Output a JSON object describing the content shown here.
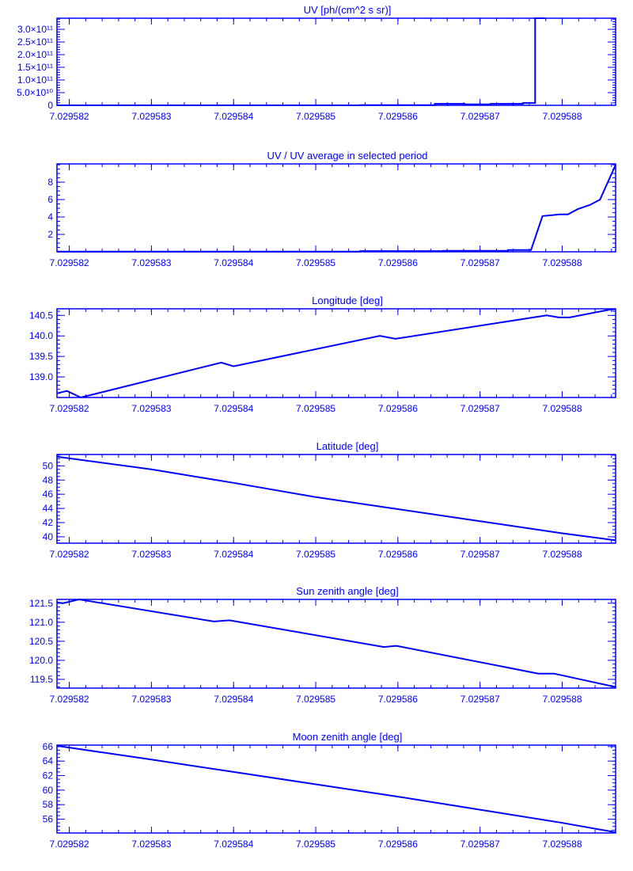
{
  "color": "#0000ff",
  "chart_data": [
    {
      "type": "line",
      "title": "UV [ph/(cm^2 s sr)]",
      "xlim": [
        7.02958185,
        7.02958865
      ],
      "ylim": [
        0,
        344000000000.0
      ],
      "xticks": [
        7.029582,
        7.029583,
        7.029584,
        7.029585,
        7.029586,
        7.029587,
        7.029588
      ],
      "xtick_labels": [
        "7.029582",
        "7.029583",
        "7.029584",
        "7.029585",
        "7.029586",
        "7.029587",
        "7.029588"
      ],
      "yticks": [
        0,
        50000000000.0,
        100000000000.0,
        150000000000.0,
        200000000000.0,
        250000000000.0,
        300000000000.0
      ],
      "ytick_labels": [
        "0",
        "5.0×10¹⁰",
        "1.0×10¹¹",
        "1.5×10¹¹",
        "2.0×10¹¹",
        "2.5×10¹¹",
        "3.0×10¹¹"
      ],
      "yminor": 10000000000.0,
      "x": [
        7.02958185,
        7.02958554,
        7.02958554,
        7.02958645,
        7.02958645,
        7.02958681,
        7.02958681,
        7.02958713,
        7.02958713,
        7.02958752,
        7.02958752,
        7.02958767,
        7.02958767,
        7.02958779
      ],
      "y": [
        0,
        0,
        1000000000.0,
        1000000000.0,
        6000000000.0,
        6000000000.0,
        4000000000.0,
        4000000000.0,
        6000000000.0,
        6000000000.0,
        9000000000.0,
        9000000000.0,
        344000000000.0,
        344000000000.0
      ]
    },
    {
      "type": "line",
      "title": "UV / UV average in selected period",
      "xlim": [
        7.02958185,
        7.02958865
      ],
      "ylim": [
        0,
        10.1
      ],
      "xticks": [
        7.029582,
        7.029583,
        7.029584,
        7.029585,
        7.029586,
        7.029587,
        7.029588
      ],
      "xtick_labels": [
        "7.029582",
        "7.029583",
        "7.029584",
        "7.029585",
        "7.029586",
        "7.029587",
        "7.029588"
      ],
      "yticks": [
        2,
        4,
        6,
        8
      ],
      "ytick_labels": [
        "2",
        "4",
        "6",
        "8"
      ],
      "yminor": 0.5,
      "x": [
        7.02958185,
        7.02958554,
        7.02958554,
        7.02958655,
        7.02958655,
        7.02958734,
        7.02958734,
        7.02958762,
        7.02958776,
        7.02958797,
        7.02958807,
        7.02958819,
        7.02958834,
        7.02958846,
        7.02958865
      ],
      "y": [
        0.03,
        0.03,
        0.08,
        0.08,
        0.12,
        0.12,
        0.2,
        0.2,
        4.1,
        4.3,
        4.3,
        4.9,
        5.4,
        6.0,
        10.0
      ]
    },
    {
      "type": "line",
      "title": "Longitude [deg]",
      "xlim": [
        7.02958185,
        7.02958865
      ],
      "ylim": [
        138.5,
        140.66
      ],
      "xticks": [
        7.029582,
        7.029583,
        7.029584,
        7.029585,
        7.029586,
        7.029587,
        7.029588
      ],
      "xtick_labels": [
        "7.029582",
        "7.029583",
        "7.029584",
        "7.029585",
        "7.029586",
        "7.029587",
        "7.029588"
      ],
      "yticks": [
        139.0,
        139.5,
        140.0,
        140.5
      ],
      "ytick_labels": [
        "139.0",
        "139.5",
        "140.0",
        "140.5"
      ],
      "yminor": 0.1,
      "x": [
        7.02958185,
        7.02958197,
        7.02958214,
        7.02958385,
        7.029584,
        7.02958578,
        7.02958597,
        7.02958781,
        7.02958796,
        7.02958809,
        7.02958858,
        7.02958865
      ],
      "y": [
        138.6,
        138.66,
        138.5,
        139.35,
        139.26,
        140.0,
        139.93,
        140.5,
        140.45,
        140.45,
        140.64,
        140.65
      ]
    },
    {
      "type": "line",
      "title": "Latitude [deg]",
      "xlim": [
        7.02958185,
        7.02958865
      ],
      "ylim": [
        39.1,
        51.6
      ],
      "xticks": [
        7.029582,
        7.029583,
        7.029584,
        7.029585,
        7.029586,
        7.029587,
        7.029588
      ],
      "xtick_labels": [
        "7.029582",
        "7.029583",
        "7.029584",
        "7.029585",
        "7.029586",
        "7.029587",
        "7.029588"
      ],
      "yticks": [
        40,
        42,
        44,
        46,
        48,
        50
      ],
      "ytick_labels": [
        "40",
        "42",
        "44",
        "46",
        "48",
        "50"
      ],
      "yminor": 0.5,
      "x": [
        7.02958185,
        7.029583,
        7.029584,
        7.029585,
        7.029586,
        7.029587,
        7.029588,
        7.02958865
      ],
      "y": [
        51.3,
        49.5,
        47.6,
        45.6,
        43.9,
        42.2,
        40.5,
        39.5
      ]
    },
    {
      "type": "line",
      "title": "Sun zenith angle [deg]",
      "xlim": [
        7.02958185,
        7.02958865
      ],
      "ylim": [
        119.27,
        121.6
      ],
      "xticks": [
        7.029582,
        7.029583,
        7.029584,
        7.029585,
        7.029586,
        7.029587,
        7.029588
      ],
      "xtick_labels": [
        "7.029582",
        "7.029583",
        "7.029584",
        "7.029585",
        "7.029586",
        "7.029587",
        "7.029588"
      ],
      "yticks": [
        119.5,
        120.0,
        120.5,
        121.0,
        121.5
      ],
      "ytick_labels": [
        "119.5",
        "120.0",
        "120.5",
        "121.0",
        "121.5"
      ],
      "yminor": 0.1,
      "x": [
        7.02958185,
        7.02958192,
        7.02958212,
        7.02958376,
        7.02958395,
        7.02958583,
        7.02958598,
        7.02958771,
        7.0295879,
        7.02958865
      ],
      "y": [
        121.52,
        121.5,
        121.6,
        121.02,
        121.05,
        120.35,
        120.38,
        119.65,
        119.65,
        119.3
      ]
    },
    {
      "type": "line",
      "title": "Moon zenith angle [deg]",
      "xlim": [
        7.02958185,
        7.02958865
      ],
      "ylim": [
        54.1,
        66.2
      ],
      "xticks": [
        7.029582,
        7.029583,
        7.029584,
        7.029585,
        7.029586,
        7.029587,
        7.029588
      ],
      "xtick_labels": [
        "7.029582",
        "7.029583",
        "7.029584",
        "7.029585",
        "7.029586",
        "7.029587",
        "7.029588"
      ],
      "yticks": [
        56,
        58,
        60,
        62,
        64,
        66
      ],
      "ytick_labels": [
        "56",
        "58",
        "60",
        "62",
        "64",
        "66"
      ],
      "yminor": 0.5,
      "x": [
        7.02958185,
        7.029583,
        7.029584,
        7.029585,
        7.029586,
        7.029587,
        7.029588,
        7.02958865
      ],
      "y": [
        66.1,
        64.2,
        62.5,
        60.8,
        59.1,
        57.3,
        55.5,
        54.2
      ]
    }
  ]
}
